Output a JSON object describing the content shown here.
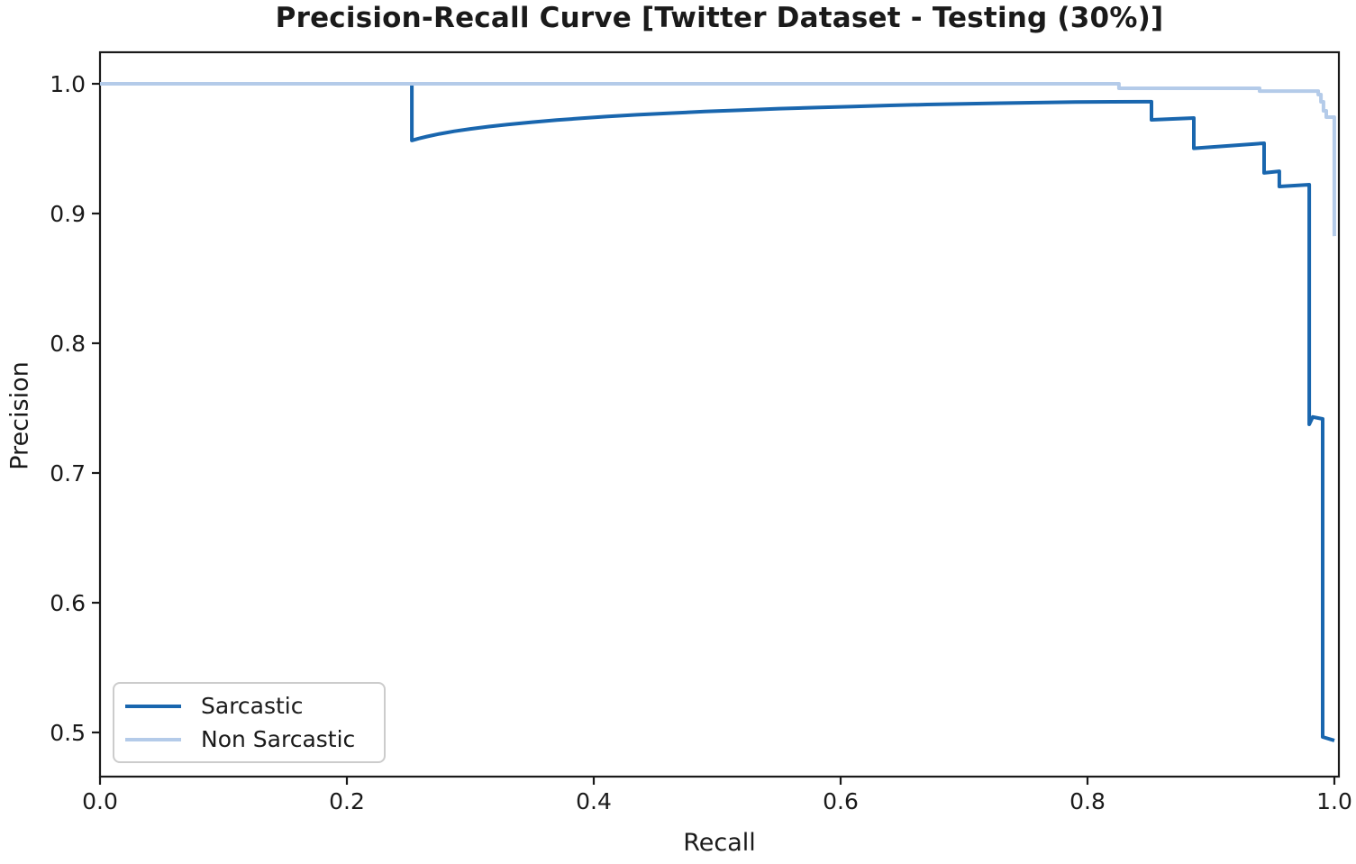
{
  "chart_data": {
    "type": "line",
    "title": "Precision-Recall Curve [Twitter Dataset - Testing (30%)]",
    "xlabel": "Recall",
    "ylabel": "Precision",
    "xlim": [
      0.0,
      1.0036
    ],
    "ylim": [
      0.466,
      1.0243
    ],
    "x_ticks": [
      0.0,
      0.2,
      0.4,
      0.6,
      0.8,
      1.0
    ],
    "y_ticks": [
      0.5,
      0.6,
      0.7,
      0.8,
      0.9,
      1.0
    ],
    "grid": false,
    "legend_position": "lower left",
    "axis_color": "#1a1a1a",
    "series": [
      {
        "name": "Sarcastic",
        "color": "#1966ae",
        "points": [
          [
            0.0,
            1.0
          ],
          [
            0.2526,
            1.0
          ],
          [
            0.2526,
            0.9563
          ],
          [
            0.258,
            0.9578
          ],
          [
            0.265,
            0.9594
          ],
          [
            0.275,
            0.9614
          ],
          [
            0.287,
            0.9634
          ],
          [
            0.3,
            0.9652
          ],
          [
            0.315,
            0.967
          ],
          [
            0.33,
            0.9686
          ],
          [
            0.35,
            0.9704
          ],
          [
            0.37,
            0.972
          ],
          [
            0.39,
            0.9734
          ],
          [
            0.41,
            0.9747
          ],
          [
            0.435,
            0.9761
          ],
          [
            0.46,
            0.9773
          ],
          [
            0.49,
            0.9786
          ],
          [
            0.52,
            0.9797
          ],
          [
            0.55,
            0.9808
          ],
          [
            0.58,
            0.9817
          ],
          [
            0.61,
            0.9825
          ],
          [
            0.64,
            0.9833
          ],
          [
            0.67,
            0.984
          ],
          [
            0.7,
            0.9846
          ],
          [
            0.73,
            0.9851
          ],
          [
            0.76,
            0.9855
          ],
          [
            0.79,
            0.9859
          ],
          [
            0.82,
            0.9861
          ],
          [
            0.8518,
            0.9862
          ],
          [
            0.8518,
            0.9722
          ],
          [
            0.8861,
            0.9736
          ],
          [
            0.8861,
            0.9503
          ],
          [
            0.9431,
            0.9542
          ],
          [
            0.9431,
            0.9313
          ],
          [
            0.9554,
            0.9326
          ],
          [
            0.9554,
            0.9208
          ],
          [
            0.9796,
            0.9222
          ],
          [
            0.9796,
            0.7375
          ],
          [
            0.9825,
            0.7432
          ],
          [
            0.9905,
            0.7417
          ],
          [
            0.9905,
            0.4965
          ],
          [
            1.0,
            0.4938
          ]
        ]
      },
      {
        "name": "Non Sarcastic",
        "color": "#b4cbe9",
        "points": [
          [
            0.0,
            1.0
          ],
          [
            0.8255,
            1.0
          ],
          [
            0.8255,
            0.9965
          ],
          [
            0.9394,
            0.9965
          ],
          [
            0.9394,
            0.9944
          ],
          [
            0.9869,
            0.9944
          ],
          [
            0.9869,
            0.9917
          ],
          [
            0.9891,
            0.9917
          ],
          [
            0.9891,
            0.9861
          ],
          [
            0.9912,
            0.9861
          ],
          [
            0.9912,
            0.9792
          ],
          [
            0.9934,
            0.9792
          ],
          [
            0.9934,
            0.9743
          ],
          [
            0.9999,
            0.9743
          ],
          [
            0.9999,
            0.884
          ],
          [
            1.0,
            0.8826
          ]
        ]
      }
    ]
  }
}
